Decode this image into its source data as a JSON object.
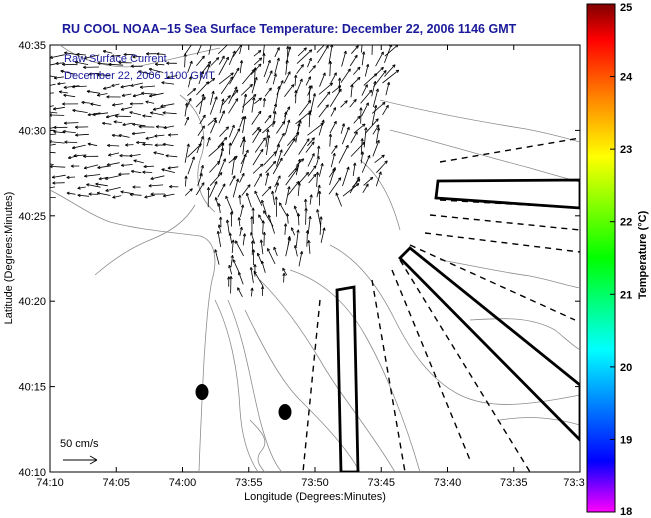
{
  "title": "RU COOL  NOAA−15  Sea Surface Temperature:  December 22, 2006 1146 GMT",
  "xlabel": "Longitude (Degrees:Minutes)",
  "ylabel": "Latitude (Degrees:Minutes)",
  "x_ticks": [
    "74:10",
    "74:05",
    "74:00",
    "73:55",
    "73:50",
    "73:45",
    "73:40",
    "73:35",
    "73:3"
  ],
  "y_ticks": [
    "40:35",
    "40:30",
    "40:25",
    "40:20",
    "40:15",
    "40:10"
  ],
  "annotation_line1": "Raw Surface Current",
  "annotation_line2": "December 22, 2006 1100 GMT",
  "scale_label": "50 cm/s",
  "colorbar": {
    "label": "Temperature (°C)",
    "ticks": [
      "25",
      "24",
      "23",
      "22",
      "21",
      "20",
      "19",
      "18"
    ],
    "min": 18,
    "max": 25,
    "colors": [
      "#ff00ff",
      "#0000ff",
      "#00ffff",
      "#00ff00",
      "#ffff00",
      "#ff8000",
      "#ff0000",
      "#800000"
    ]
  },
  "colors": {
    "title": "#1a1a9a",
    "vectors": "#000000",
    "contour": "#8c8c8c"
  }
}
